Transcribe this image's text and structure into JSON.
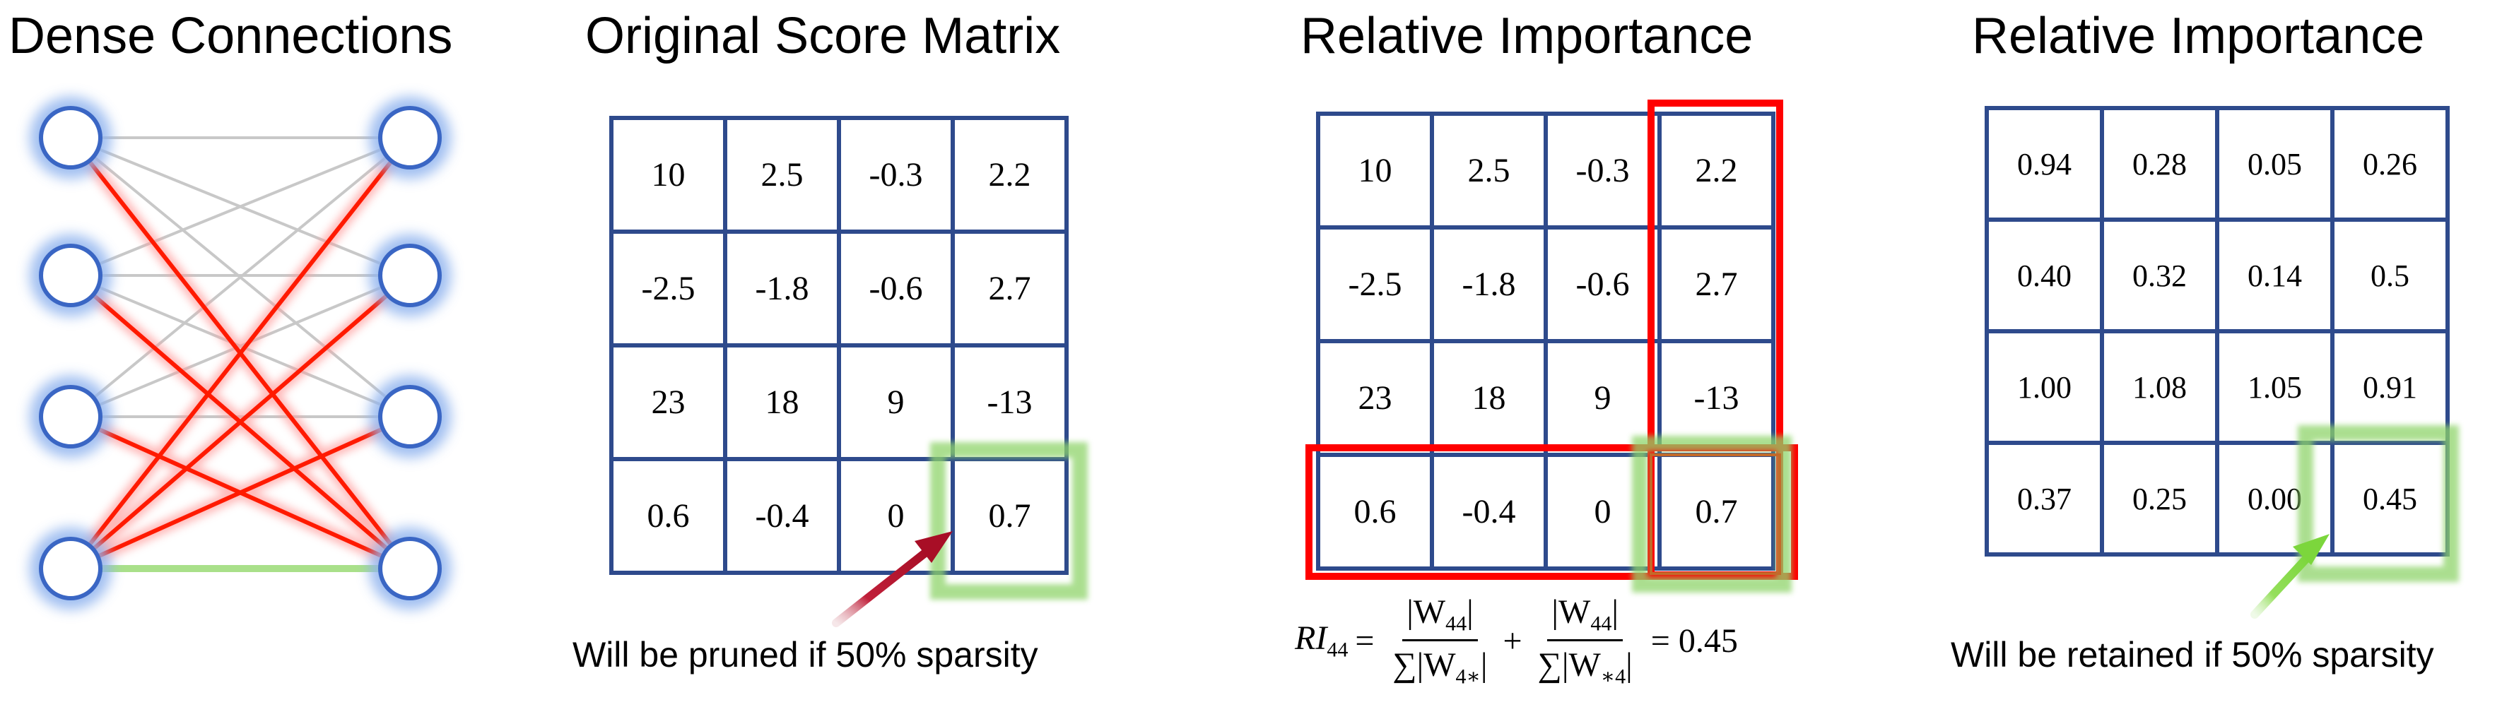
{
  "panel1": {
    "title": "Dense Connections"
  },
  "panel2": {
    "title": "Original Score Matrix",
    "matrix": [
      [
        "10",
        "2.5",
        "-0.3",
        "2.2"
      ],
      [
        "-2.5",
        "-1.8",
        "-0.6",
        "2.7"
      ],
      [
        "23",
        "18",
        "9",
        "-13"
      ],
      [
        "0.6",
        "-0.4",
        "0",
        "0.7"
      ]
    ],
    "caption": "Will be pruned if 50% sparsity"
  },
  "panel3": {
    "title": "Relative Importance",
    "matrix": [
      [
        "10",
        "2.5",
        "-0.3",
        "2.2"
      ],
      [
        "-2.5",
        "-1.8",
        "-0.6",
        "2.7"
      ],
      [
        "23",
        "18",
        "9",
        "-13"
      ],
      [
        "0.6",
        "-0.4",
        "0",
        "0.7"
      ]
    ],
    "formula": {
      "lhs_var": "RI",
      "lhs_sub": "44",
      "eq": "=",
      "term1_num": "|W",
      "term1_num_sub": "44",
      "term1_num_end": "|",
      "term1_den": "∑|W",
      "term1_den_sub": "4∗",
      "term1_den_end": "|",
      "plus": "+",
      "term2_num": "|W",
      "term2_num_sub": "44",
      "term2_num_end": "|",
      "term2_den": "∑|W",
      "term2_den_sub": "∗4",
      "term2_den_end": "|",
      "result": "= 0.45"
    }
  },
  "panel4": {
    "title": "Relative Importance",
    "matrix": [
      [
        "0.94",
        "0.28",
        "0.05",
        "0.26"
      ],
      [
        "0.40",
        "0.32",
        "0.14",
        "0.5"
      ],
      [
        "1.00",
        "1.08",
        "1.05",
        "0.91"
      ],
      [
        "0.37",
        "0.25",
        "0.00",
        "0.45"
      ]
    ],
    "caption": "Will be retained if 50% sparsity"
  },
  "colors": {
    "matrix_border": "#2E4A8C",
    "node_border": "#3A66C4",
    "node_glow": "#8FB3EE",
    "dense_line": "#C8C8C8",
    "pruned_line": "#FF1A00",
    "highlight_green": "#8FD46A",
    "highlight_red": "#FF0000",
    "arrow_pruned": "#B0122B",
    "arrow_retained": "#86DC4A"
  }
}
